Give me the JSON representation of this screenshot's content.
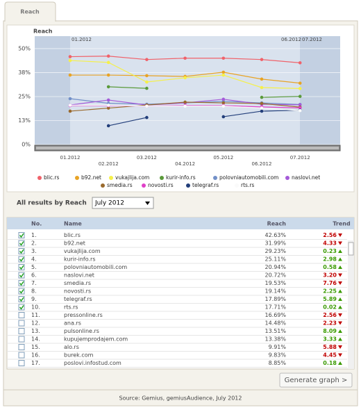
{
  "tab": "Reach",
  "chart_data": {
    "type": "line",
    "title": "Reach",
    "categories": [
      "01.2012",
      "02.2012",
      "03.2012",
      "04.2012",
      "05.2012",
      "06.2012",
      "07.2012"
    ],
    "range_labels": [
      "01.2012",
      "06.2012",
      "07.2012"
    ],
    "ylim": [
      0,
      56.5
    ],
    "yticks": [
      {
        "value": 0,
        "label": "0%"
      },
      {
        "value": 12.5,
        "label": "13%"
      },
      {
        "value": 25,
        "label": "25%"
      },
      {
        "value": 37.5,
        "label": "38%"
      },
      {
        "value": 50,
        "label": "50%"
      }
    ],
    "grid": true,
    "series": [
      {
        "name": "blic.rs",
        "color": "#f0626a",
        "values": [
          45.8,
          46.1,
          44.3,
          45.0,
          45.0,
          44.3,
          42.6
        ]
      },
      {
        "name": "b92.net",
        "color": "#e8a325",
        "values": [
          36.2,
          36.2,
          35.9,
          35.5,
          37.7,
          34.1,
          32.0
        ]
      },
      {
        "name": "vukajlija.com",
        "color": "#f5f04a",
        "values": [
          43.8,
          42.8,
          32.6,
          34.8,
          36.2,
          29.7,
          29.2
        ]
      },
      {
        "name": "kurir-info.rs",
        "color": "#5a9a3a",
        "values": [
          null,
          30.1,
          29.3,
          null,
          null,
          24.6,
          25.1
        ]
      },
      {
        "name": "polovniautomobili.com",
        "color": "#7290c8",
        "values": [
          23.9,
          21.5,
          21.0,
          21.7,
          22.5,
          21.7,
          20.9
        ]
      },
      {
        "name": "naslovi.net",
        "color": "#a45ad8",
        "values": [
          20.6,
          23.2,
          20.6,
          21.7,
          23.6,
          21.0,
          20.7
        ]
      },
      {
        "name": "smedia.rs",
        "color": "#9a6a2e",
        "values": [
          17.4,
          19.0,
          20.6,
          22.1,
          21.7,
          21.4,
          19.5
        ]
      },
      {
        "name": "novosti.rs",
        "color": "#e040c8",
        "values": [
          20.3,
          20.3,
          20.0,
          20.3,
          20.3,
          19.6,
          19.1
        ]
      },
      {
        "name": "telegraf.rs",
        "color": "#223e7a",
        "values": [
          null,
          9.8,
          14.1,
          null,
          14.5,
          17.4,
          17.9
        ]
      },
      {
        "name": "rts.rs",
        "color": "#fafafa",
        "values": [
          20.5,
          20.5,
          20.0,
          20.0,
          20.0,
          19.0,
          17.7
        ]
      }
    ]
  },
  "filter": {
    "label": "All results by Reach",
    "selected": "July 2012"
  },
  "table": {
    "columns": [
      "No.",
      "Name",
      "Reach",
      "Trend"
    ],
    "rows": [
      {
        "checked": true,
        "no": "1.",
        "name": "blic.rs",
        "reach": "42.63%",
        "trend": "2.56",
        "trend_dir": "down"
      },
      {
        "checked": true,
        "no": "2.",
        "name": "b92.net",
        "reach": "31.99%",
        "trend": "4.33",
        "trend_dir": "down"
      },
      {
        "checked": true,
        "no": "3.",
        "name": "vukajlija.com",
        "reach": "29.23%",
        "trend": "0.23",
        "trend_dir": "up"
      },
      {
        "checked": true,
        "no": "4.",
        "name": "kurir-info.rs",
        "reach": "25.11%",
        "trend": "2.98",
        "trend_dir": "up"
      },
      {
        "checked": true,
        "no": "5.",
        "name": "polovniautomobili.com",
        "reach": "20.94%",
        "trend": "0.58",
        "trend_dir": "up"
      },
      {
        "checked": true,
        "no": "6.",
        "name": "naslovi.net",
        "reach": "20.72%",
        "trend": "3.20",
        "trend_dir": "down"
      },
      {
        "checked": true,
        "no": "7.",
        "name": "smedia.rs",
        "reach": "19.53%",
        "trend": "7.76",
        "trend_dir": "down"
      },
      {
        "checked": true,
        "no": "8.",
        "name": "novosti.rs",
        "reach": "19.14%",
        "trend": "2.25",
        "trend_dir": "up"
      },
      {
        "checked": true,
        "no": "9.",
        "name": "telegraf.rs",
        "reach": "17.89%",
        "trend": "5.89",
        "trend_dir": "up"
      },
      {
        "checked": true,
        "no": "10.",
        "name": "rts.rs",
        "reach": "17.71%",
        "trend": "0.02",
        "trend_dir": "up"
      },
      {
        "checked": false,
        "no": "11.",
        "name": "pressonline.rs",
        "reach": "16.69%",
        "trend": "2.56",
        "trend_dir": "down"
      },
      {
        "checked": false,
        "no": "12.",
        "name": "ana.rs",
        "reach": "14.48%",
        "trend": "2.23",
        "trend_dir": "down"
      },
      {
        "checked": false,
        "no": "13.",
        "name": "pulsonline.rs",
        "reach": "13.51%",
        "trend": "8.09",
        "trend_dir": "up"
      },
      {
        "checked": false,
        "no": "14.",
        "name": "kupujemprodajem.com",
        "reach": "13.38%",
        "trend": "3.33",
        "trend_dir": "up"
      },
      {
        "checked": false,
        "no": "15.",
        "name": "alo.rs",
        "reach": "9.91%",
        "trend": "5.88",
        "trend_dir": "down"
      },
      {
        "checked": false,
        "no": "16.",
        "name": "burek.com",
        "reach": "9.83%",
        "trend": "4.45",
        "trend_dir": "down"
      },
      {
        "checked": false,
        "no": "17.",
        "name": "poslovi.infostud.com",
        "reach": "8.85%",
        "trend": "0.18",
        "trend_dir": "up"
      }
    ]
  },
  "button": "Generate graph >",
  "footer": "Source: Gemius, gemiusAudience, July 2012"
}
